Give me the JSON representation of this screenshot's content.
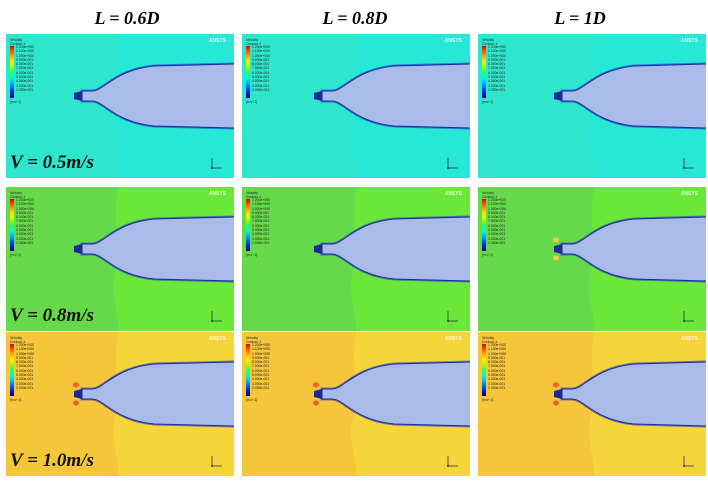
{
  "columns": [
    "L = 0.6D",
    "L = 0.8D",
    "L = 1D"
  ],
  "rows": [
    {
      "label": "V = 0.5m/s",
      "field_color": "#2ee6cc",
      "wake_color": "#22e8e0",
      "panels": [
        {
          "ticks": [
            "1.200e+000",
            "1.100e+000",
            "1.000e+000",
            "9.000e-001",
            "8.000e-001",
            "7.000e-001",
            "6.000e-001",
            "5.000e-001",
            "4.000e-001",
            "3.000e-001",
            "2.000e-001"
          ]
        },
        {
          "ticks": [
            "1.200e+000",
            "1.100e+000",
            "1.000e+000",
            "9.000e-001",
            "8.000e-001",
            "7.000e-001",
            "6.000e-001",
            "5.000e-001",
            "4.000e-001",
            "3.000e-001",
            "2.000e-001"
          ]
        },
        {
          "ticks": [
            "1.200e+000",
            "1.100e+000",
            "1.000e+000",
            "9.000e-001",
            "8.000e-001",
            "7.000e-001",
            "6.000e-001",
            "5.000e-001",
            "4.000e-001",
            "3.000e-001",
            "2.000e-001"
          ]
        }
      ]
    },
    {
      "label": "V = 0.8m/s",
      "field_color": "#66d94a",
      "wake_color": "#6df22a",
      "panels": [
        {
          "ticks": [
            "1.200e+000",
            "1.100e+000",
            "1.000e+000",
            "9.000e-001",
            "8.000e-001",
            "7.000e-001",
            "6.000e-001",
            "5.000e-001",
            "4.000e-001",
            "3.000e-001",
            "2.000e-001"
          ]
        },
        {
          "ticks": [
            "1.200e+000",
            "1.100e+000",
            "1.000e+000",
            "9.000e-001",
            "8.000e-001",
            "7.000e-001",
            "6.000e-001",
            "5.000e-001",
            "4.000e-001",
            "3.000e-001",
            "2.000e-001"
          ]
        },
        {
          "ticks": [
            "1.200e+000",
            "1.100e+000",
            "1.000e+000",
            "9.000e-001",
            "8.000e-001",
            "7.000e-001",
            "6.000e-001",
            "5.000e-001",
            "4.000e-001",
            "3.000e-001",
            "2.000e-001"
          ]
        }
      ]
    },
    {
      "label": "V = 1.0m/s",
      "field_color": "#f5c53a",
      "wake_color": "#f5e23a",
      "panels": [
        {
          "ticks": [
            "1.200e+000",
            "1.100e+000",
            "1.000e+000",
            "9.000e-001",
            "8.000e-001",
            "7.000e-001",
            "6.000e-001",
            "5.000e-001",
            "4.000e-001",
            "3.000e-001",
            "2.000e-001"
          ]
        },
        {
          "ticks": [
            "1.200e+000",
            "1.100e+000",
            "1.000e+000",
            "9.000e-001",
            "8.000e-001",
            "7.000e-001",
            "6.000e-001",
            "5.000e-001",
            "4.000e-001",
            "3.000e-001",
            "2.000e-001"
          ]
        },
        {
          "ticks": [
            "1.200e+000",
            "1.100e+000",
            "1.000e+000",
            "9.000e-001",
            "8.000e-001",
            "7.000e-001",
            "6.000e-001",
            "5.000e-001",
            "4.000e-001",
            "3.000e-001",
            "2.000e-001"
          ]
        }
      ]
    }
  ],
  "legend": {
    "title": "Velocity",
    "subtitle": "Contour 1",
    "unit": "[m s^-1]"
  },
  "watermark": "ANSYS",
  "colors": {
    "hull": "#a9bbe8",
    "hull_edge": "#1a2a9a",
    "boundary": "#1d3bd6"
  }
}
